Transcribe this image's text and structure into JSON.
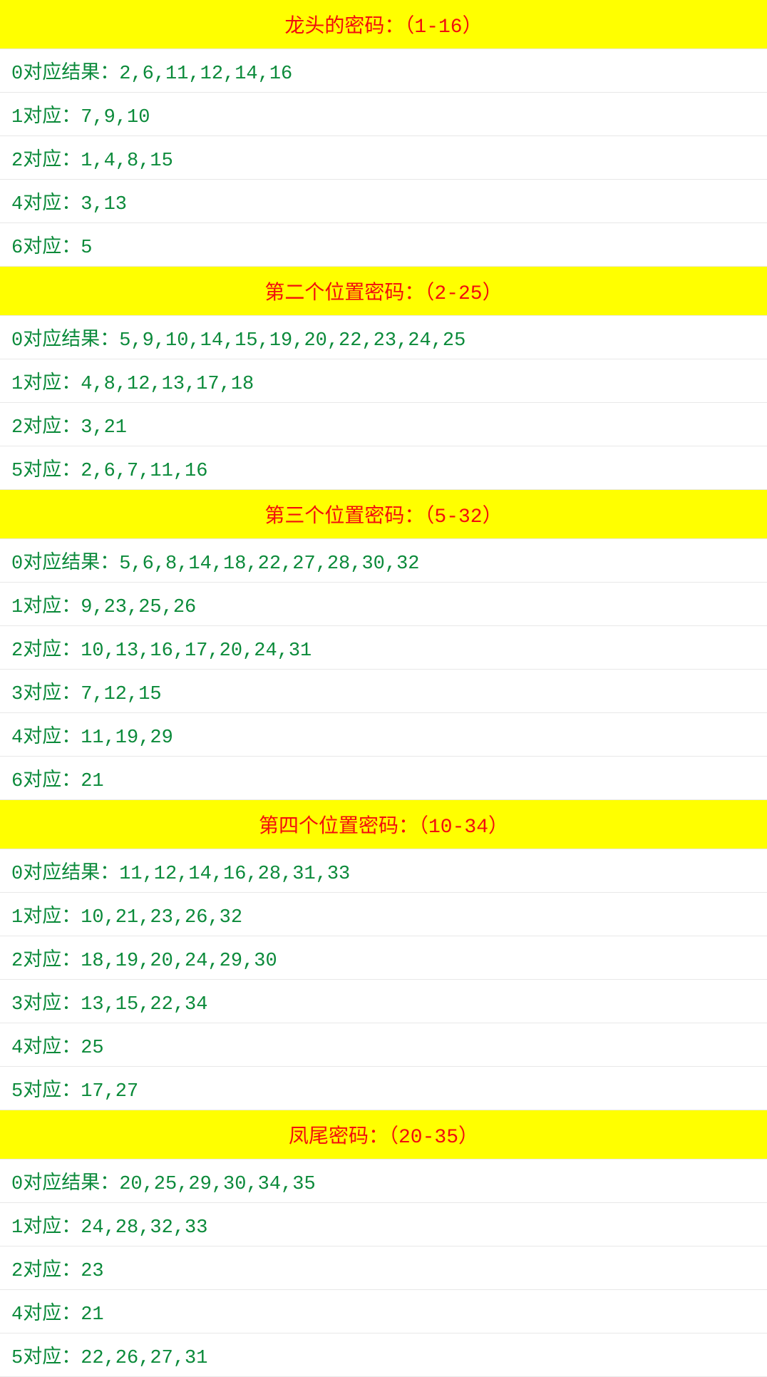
{
  "colors": {
    "header_bg": "#ffff00",
    "header_text": "#f20d0d",
    "row_text": "#0b8a3a",
    "row_border": "#e8e8e8",
    "page_bg": "#ffffff"
  },
  "typography": {
    "header_fontsize": 28,
    "row_fontsize": 27,
    "font_family": "SimSun, monospace"
  },
  "sections": [
    {
      "title": "龙头的密码：（1-16）",
      "rows": [
        "0对应结果：2,6,11,12,14,16",
        "1对应：7,9,10",
        "2对应：1,4,8,15",
        "4对应：3,13",
        "6对应：5"
      ]
    },
    {
      "title": "第二个位置密码：（2-25）",
      "rows": [
        "0对应结果：5,9,10,14,15,19,20,22,23,24,25",
        "1对应：4,8,12,13,17,18",
        "2对应：3,21",
        "5对应：2,6,7,11,16"
      ]
    },
    {
      "title": "第三个位置密码：（5-32）",
      "rows": [
        "0对应结果：5,6,8,14,18,22,27,28,30,32",
        "1对应：9,23,25,26",
        "2对应：10,13,16,17,20,24,31",
        "3对应：7,12,15",
        "4对应：11,19,29",
        "6对应：21"
      ]
    },
    {
      "title": "第四个位置密码：（10-34）",
      "rows": [
        "0对应结果：11,12,14,16,28,31,33",
        "1对应：10,21,23,26,32",
        "2对应：18,19,20,24,29,30",
        "3对应：13,15,22,34",
        "4对应：25",
        "5对应：17,27"
      ]
    },
    {
      "title": "凤尾密码：（20-35）",
      "rows": [
        "0对应结果：20,25,29,30,34,35",
        "1对应：24,28,32,33",
        "2对应：23",
        "4对应：21",
        "5对应：22,26,27,31"
      ]
    }
  ]
}
